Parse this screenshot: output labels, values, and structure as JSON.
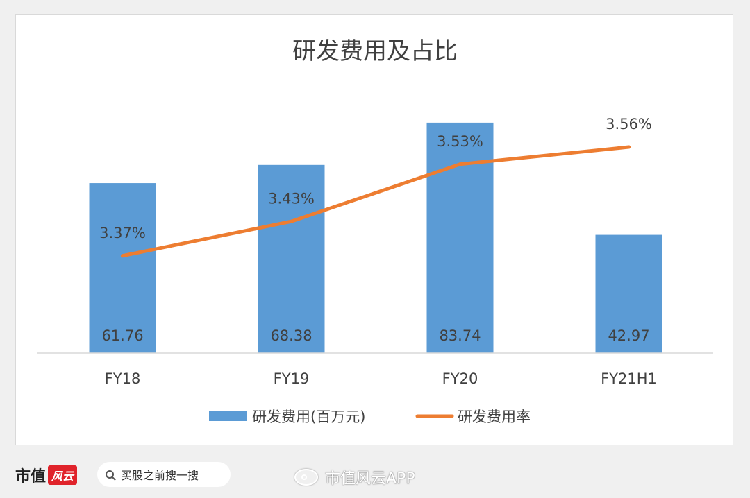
{
  "chart_data": {
    "type": "bar",
    "title": "研发费用及占比",
    "categories": [
      "FY18",
      "FY19",
      "FY20",
      "FY21H1"
    ],
    "series": [
      {
        "name": "研发费用(百万元)",
        "kind": "bar",
        "values": [
          61.76,
          68.38,
          83.74,
          42.97
        ],
        "value_labels": [
          "61.76",
          "68.38",
          "83.74",
          "42.97"
        ],
        "color": "#5b9bd5"
      },
      {
        "name": "研发费用率",
        "kind": "line",
        "values": [
          3.37,
          3.43,
          3.53,
          3.56
        ],
        "value_labels": [
          "3.37%",
          "3.43%",
          "3.53%",
          "3.56%"
        ],
        "color": "#ed7d31"
      }
    ],
    "bar_ylim": [
      0,
      88
    ],
    "line_ylim": [
      3.2,
      3.6
    ],
    "legend_position": "bottom",
    "grid": false
  },
  "footer": {
    "brand_text": "市值",
    "brand_badge": "风云",
    "search_placeholder": "买股之前搜一搜",
    "watermark_text": "市值风云APP"
  },
  "colors": {
    "bar": "#5b9bd5",
    "line": "#ed7d31"
  }
}
